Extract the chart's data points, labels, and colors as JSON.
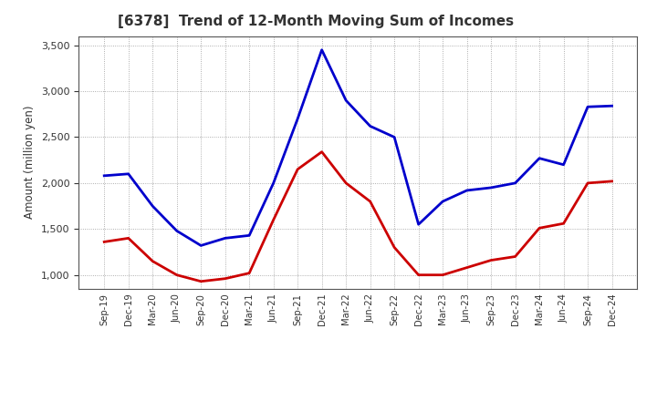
{
  "title": "[6378]  Trend of 12-Month Moving Sum of Incomes",
  "ylabel": "Amount (million yen)",
  "x_labels": [
    "Sep-19",
    "Dec-19",
    "Mar-20",
    "Jun-20",
    "Sep-20",
    "Dec-20",
    "Mar-21",
    "Jun-21",
    "Sep-21",
    "Dec-21",
    "Mar-22",
    "Jun-22",
    "Sep-22",
    "Dec-22",
    "Mar-23",
    "Jun-23",
    "Sep-23",
    "Dec-23",
    "Mar-24",
    "Jun-24",
    "Sep-24",
    "Dec-24"
  ],
  "ordinary_income": [
    2080,
    2100,
    1750,
    1480,
    1320,
    1400,
    1430,
    2000,
    2700,
    3450,
    2900,
    2620,
    2500,
    1550,
    1800,
    1920,
    1950,
    2000,
    2270,
    2200,
    2830,
    2840
  ],
  "net_income": [
    1360,
    1400,
    1150,
    1000,
    930,
    960,
    1020,
    1600,
    2150,
    2340,
    2000,
    1800,
    1300,
    1000,
    1000,
    1080,
    1160,
    1200,
    1510,
    1560,
    2000,
    2020
  ],
  "ordinary_color": "#0000cc",
  "net_color": "#cc0000",
  "ylim": [
    850,
    3600
  ],
  "yticks": [
    1000,
    1500,
    2000,
    2500,
    3000,
    3500
  ],
  "title_color": "#333333",
  "title_fontsize": 11,
  "background_color": "#ffffff",
  "grid_color": "#999999"
}
